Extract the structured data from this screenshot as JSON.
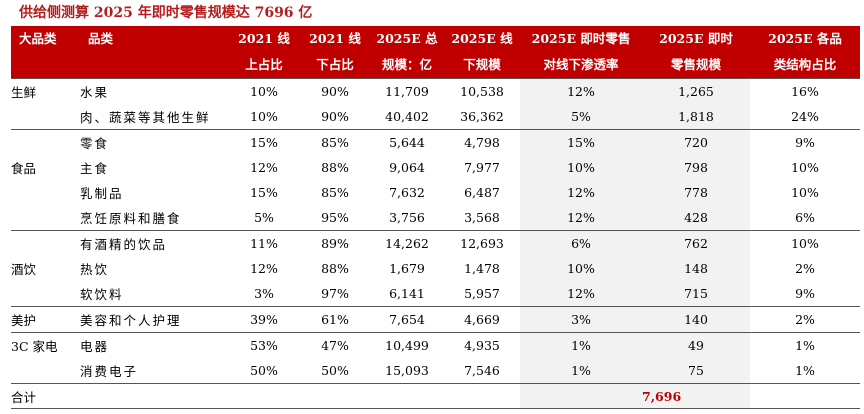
{
  "title": "供给侧测算 2025 年即时零售规模达 7696 亿",
  "header": {
    "c0": [
      "大品类",
      ""
    ],
    "c1": [
      "品类",
      ""
    ],
    "c2": [
      "2021 线",
      "上占比"
    ],
    "c3": [
      "2021 线",
      "下占比"
    ],
    "c4": [
      "2025E 总",
      "规模：亿"
    ],
    "c5": [
      "2025E 线",
      "下规模"
    ],
    "c6": [
      "2025E 即时零售",
      "对线下渗透率"
    ],
    "c7": [
      "2025E 即时",
      "零售规模"
    ],
    "c8": [
      "2025E 各品",
      "类结构占比"
    ]
  },
  "rows": [
    {
      "cat": "生鲜",
      "item": "水果",
      "on": "10%",
      "off": "90%",
      "total": "11,709",
      "offline": "10,538",
      "pen": "12%",
      "instant": "1,265",
      "share": "16%"
    },
    {
      "cat": "",
      "item": "肉、蔬菜等其他生鲜",
      "on": "10%",
      "off": "90%",
      "total": "40,402",
      "offline": "36,362",
      "pen": "5%",
      "instant": "1,818",
      "share": "24%"
    },
    {
      "cat": "",
      "item": "零食",
      "on": "15%",
      "off": "85%",
      "total": "5,644",
      "offline": "4,798",
      "pen": "15%",
      "instant": "720",
      "share": "9%"
    },
    {
      "cat": "食品",
      "item": "主食",
      "on": "12%",
      "off": "88%",
      "total": "9,064",
      "offline": "7,977",
      "pen": "10%",
      "instant": "798",
      "share": "10%"
    },
    {
      "cat": "",
      "item": "乳制品",
      "on": "15%",
      "off": "85%",
      "total": "7,632",
      "offline": "6,487",
      "pen": "12%",
      "instant": "778",
      "share": "10%"
    },
    {
      "cat": "",
      "item": "烹饪原料和膳食",
      "on": "5%",
      "off": "95%",
      "total": "3,756",
      "offline": "3,568",
      "pen": "12%",
      "instant": "428",
      "share": "6%"
    },
    {
      "cat": "",
      "item": "有酒精的饮品",
      "on": "11%",
      "off": "89%",
      "total": "14,262",
      "offline": "12,693",
      "pen": "6%",
      "instant": "762",
      "share": "10%"
    },
    {
      "cat": "酒饮",
      "item": "热饮",
      "on": "12%",
      "off": "88%",
      "total": "1,679",
      "offline": "1,478",
      "pen": "10%",
      "instant": "148",
      "share": "2%"
    },
    {
      "cat": "",
      "item": "软饮料",
      "on": "3%",
      "off": "97%",
      "total": "6,141",
      "offline": "5,957",
      "pen": "12%",
      "instant": "715",
      "share": "9%"
    },
    {
      "cat": "美护",
      "item": "美容和个人护理",
      "on": "39%",
      "off": "61%",
      "total": "7,654",
      "offline": "4,669",
      "pen": "3%",
      "instant": "140",
      "share": "2%"
    },
    {
      "cat": "3C 家电",
      "item": "电器",
      "on": "53%",
      "off": "47%",
      "total": "10,499",
      "offline": "4,935",
      "pen": "1%",
      "instant": "49",
      "share": "1%"
    },
    {
      "cat": "",
      "item": "消费电子",
      "on": "50%",
      "off": "50%",
      "total": "15,093",
      "offline": "7,546",
      "pen": "1%",
      "instant": "75",
      "share": "1%"
    }
  ],
  "total_row": {
    "label": "合计",
    "value": "7,696"
  }
}
